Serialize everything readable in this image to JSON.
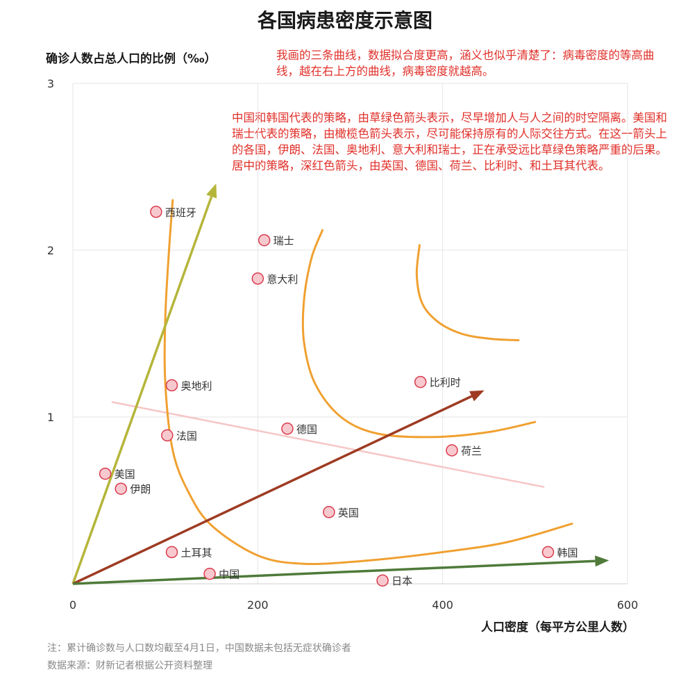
{
  "title": "各国病患密度示意图",
  "annotations": {
    "curves": "我画的三条曲线，数据拟合度更高，涵义也似乎清楚了：病毒密度的等高曲线，越在右上方的曲线，病毒密度就越高。",
    "strategies": "中国和韩国代表的策略，由草绿色箭头表示，尽早增加人与人之间的时空隔离。美国和瑞士代表的策略，由橄榄色箭头表示，尽可能保持原有的人际交往方式。在这一箭头上的各国，伊朗、法国、奥地利、意大利和瑞士，正在承受远比草绿色策略严重的后果。居中的策略，深红色箭头，由英国、德国、荷兰、比利时、和土耳其代表。"
  },
  "notes": {
    "note": "注：累计确诊数与人口数均截至4月1日，中国数据未包括无症状确诊者",
    "source": "数据来源：财新记者根据公开资料整理"
  },
  "colors": {
    "point_fill": "#f7c9cf",
    "point_stroke": "#d93b4c",
    "contour": "#f0a030",
    "arrow_olive": "#b5b53a",
    "arrow_darkred": "#9e3b22",
    "arrow_green": "#4f7a3a",
    "trend_line": "#f6c6c6",
    "grid": "#e6e6e6"
  },
  "chart_data": {
    "type": "scatter",
    "xlabel": "人口密度（每平方公里人数）",
    "ylabel": "确诊人数占总人口的比例（‰）",
    "xlim": [
      0,
      600
    ],
    "ylim": [
      0,
      3
    ],
    "x_ticks": [
      0,
      200,
      400,
      600
    ],
    "y_ticks": [
      1,
      2,
      3
    ],
    "grid": true,
    "points": [
      {
        "label": "西班牙",
        "x": 90,
        "y": 2.23
      },
      {
        "label": "瑞士",
        "x": 207,
        "y": 2.06
      },
      {
        "label": "意大利",
        "x": 200,
        "y": 1.83
      },
      {
        "label": "奥地利",
        "x": 107,
        "y": 1.19
      },
      {
        "label": "比利时",
        "x": 376,
        "y": 1.21
      },
      {
        "label": "法国",
        "x": 102,
        "y": 0.89
      },
      {
        "label": "德国",
        "x": 232,
        "y": 0.93
      },
      {
        "label": "荷兰",
        "x": 410,
        "y": 0.8
      },
      {
        "label": "美国",
        "x": 35,
        "y": 0.66
      },
      {
        "label": "伊朗",
        "x": 52,
        "y": 0.57
      },
      {
        "label": "英国",
        "x": 277,
        "y": 0.43
      },
      {
        "label": "土耳其",
        "x": 107,
        "y": 0.19
      },
      {
        "label": "韩国",
        "x": 514,
        "y": 0.19
      },
      {
        "label": "中国",
        "x": 148,
        "y": 0.06
      },
      {
        "label": "日本",
        "x": 335,
        "y": 0.02
      }
    ],
    "contours": [
      [
        [
          108,
          2.3
        ],
        [
          104,
          2.0
        ],
        [
          100,
          1.6
        ],
        [
          100,
          1.2
        ],
        [
          108,
          0.8
        ],
        [
          125,
          0.55
        ],
        [
          150,
          0.35
        ],
        [
          200,
          0.17
        ],
        [
          250,
          0.12
        ],
        [
          320,
          0.14
        ],
        [
          400,
          0.19
        ],
        [
          470,
          0.25
        ],
        [
          540,
          0.36
        ]
      ],
      [
        [
          270,
          2.12
        ],
        [
          258,
          1.95
        ],
        [
          250,
          1.7
        ],
        [
          250,
          1.45
        ],
        [
          262,
          1.2
        ],
        [
          290,
          1.0
        ],
        [
          330,
          0.9
        ],
        [
          390,
          0.88
        ],
        [
          450,
          0.91
        ],
        [
          500,
          0.97
        ]
      ],
      [
        [
          375,
          2.03
        ],
        [
          372,
          1.85
        ],
        [
          378,
          1.68
        ],
        [
          395,
          1.57
        ],
        [
          420,
          1.5
        ],
        [
          450,
          1.47
        ],
        [
          482,
          1.46
        ]
      ]
    ],
    "arrows": [
      {
        "color": "olive",
        "from": [
          0,
          0
        ],
        "to": [
          155,
          2.4
        ]
      },
      {
        "color": "darkred",
        "from": [
          0,
          0
        ],
        "to": [
          445,
          1.16
        ]
      },
      {
        "color": "green",
        "from": [
          0,
          0
        ],
        "to": [
          580,
          0.14
        ]
      }
    ],
    "trend_line": [
      [
        42,
        1.09
      ],
      [
        510,
        0.58
      ]
    ]
  }
}
